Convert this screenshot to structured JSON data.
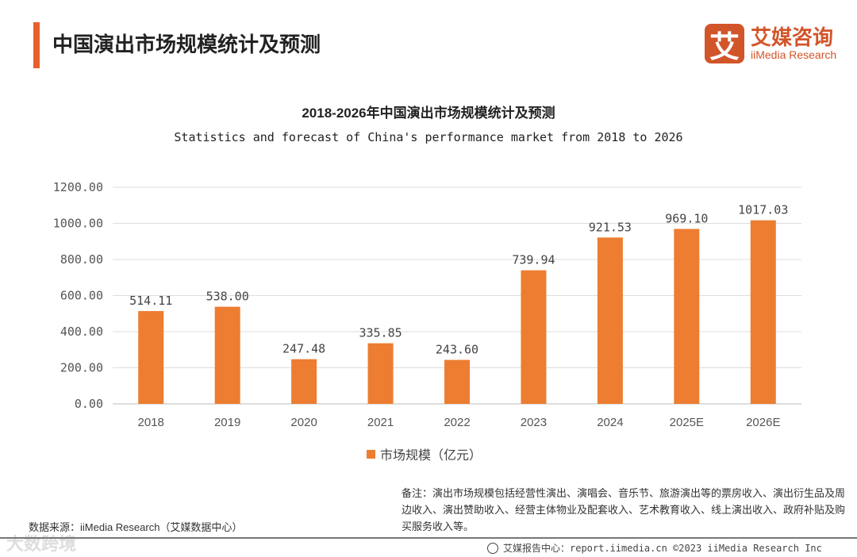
{
  "header": {
    "title": "中国演出市场规模统计及预测"
  },
  "logo": {
    "mark": "艾",
    "cn": "艾媒咨询",
    "en": "iiMedia Research"
  },
  "chart_data": {
    "type": "bar",
    "title": "2018-2026年中国演出市场规模统计及预测",
    "subtitle": "Statistics and forecast of China's performance market from 2018 to 2026",
    "categories": [
      "2018",
      "2019",
      "2020",
      "2021",
      "2022",
      "2023",
      "2024",
      "2025E",
      "2026E"
    ],
    "series": [
      {
        "name": "市场规模（亿元）",
        "values": [
          514.11,
          538.0,
          247.48,
          335.85,
          243.6,
          739.94,
          921.53,
          969.1,
          1017.03
        ],
        "color": "#ED7D31"
      }
    ],
    "value_labels": [
      "514.11",
      "538.00",
      "247.48",
      "335.85",
      "243.60",
      "739.94",
      "921.53",
      "969.10",
      "1017.03"
    ],
    "yticks": [
      "0.00",
      "200.00",
      "400.00",
      "600.00",
      "800.00",
      "1000.00",
      "1200.00"
    ],
    "ylim": [
      0,
      1200
    ],
    "grid": true,
    "legend": "bottom",
    "xlabel": "",
    "ylabel": ""
  },
  "note": "备注：演出市场规模包括经营性演出、演唱会、音乐节、旅游演出等的票房收入、演出衍生品及周边收入、演出赞助收入、经营主体物业及配套收入、艺术教育收入、线上演出收入、政府补贴及购买服务收入等。",
  "source": "数据来源：iiMedia Research（艾媒数据中心）",
  "footer": "艾媒报告中心：report.iimedia.cn  ©2023  iiMedia Research  Inc",
  "watermark": "大数跨境"
}
